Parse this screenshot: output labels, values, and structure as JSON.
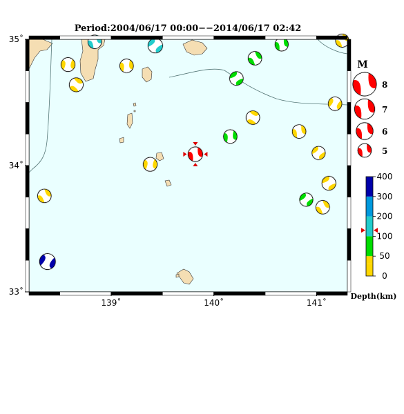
{
  "title": "Period:2004/06/17 00:00−−2014/06/17 02:42",
  "map": {
    "lon_range": [
      138.2,
      141.3
    ],
    "lat_range": [
      33.0,
      35.0
    ],
    "lon_ticks": [
      {
        "value": 139,
        "label": "139˚"
      },
      {
        "value": 140,
        "label": "140˚"
      },
      {
        "value": 141,
        "label": "141˚"
      }
    ],
    "lat_ticks": [
      {
        "value": 35,
        "label": "35˚"
      },
      {
        "value": 34,
        "label": "34˚"
      },
      {
        "value": 33,
        "label": "33˚"
      }
    ],
    "sea_color": "#eaffff",
    "land_color": "#f5deb3"
  },
  "events": [
    {
      "lon": 139.82,
      "lat": 34.09,
      "mag": 5.3,
      "color": "#ff0000",
      "rot": 20,
      "main": true
    },
    {
      "lon": 138.58,
      "lat": 34.8,
      "mag": 5.1,
      "color": "#ffd700",
      "rot": 40
    },
    {
      "lon": 138.66,
      "lat": 34.64,
      "mag": 5.1,
      "color": "#ffd700",
      "rot": -20
    },
    {
      "lon": 138.84,
      "lat": 34.98,
      "mag": 5.0,
      "color": "#22cccc",
      "rot": 10
    },
    {
      "lon": 139.15,
      "lat": 34.79,
      "mag": 5.0,
      "color": "#ffd700",
      "rot": 30
    },
    {
      "lon": 139.43,
      "lat": 34.95,
      "mag": 5.3,
      "color": "#22cccc",
      "rot": 80
    },
    {
      "lon": 140.4,
      "lat": 34.85,
      "mag": 5.0,
      "color": "#00dd00",
      "rot": 0
    },
    {
      "lon": 140.66,
      "lat": 34.96,
      "mag": 4.9,
      "color": "#00dd00",
      "rot": 20
    },
    {
      "lon": 141.25,
      "lat": 34.99,
      "mag": 4.9,
      "color": "#ffd700",
      "rot": 0
    },
    {
      "lon": 140.22,
      "lat": 34.69,
      "mag": 5.0,
      "color": "#00dd00",
      "rot": 90
    },
    {
      "lon": 141.18,
      "lat": 34.49,
      "mag": 5.0,
      "color": "#ffd700",
      "rot": 60
    },
    {
      "lon": 140.38,
      "lat": 34.38,
      "mag": 5.0,
      "color": "#ffd700",
      "rot": -30
    },
    {
      "lon": 140.83,
      "lat": 34.27,
      "mag": 5.0,
      "color": "#ffd700",
      "rot": 20
    },
    {
      "lon": 140.16,
      "lat": 34.23,
      "mag": 5.0,
      "color": "#00dd00",
      "rot": 30
    },
    {
      "lon": 141.02,
      "lat": 34.1,
      "mag": 4.9,
      "color": "#ffd700",
      "rot": 80
    },
    {
      "lon": 139.38,
      "lat": 34.01,
      "mag": 5.1,
      "color": "#ffd700",
      "rot": 40
    },
    {
      "lon": 141.12,
      "lat": 33.86,
      "mag": 5.1,
      "color": "#ffd700",
      "rot": 90
    },
    {
      "lon": 140.9,
      "lat": 33.73,
      "mag": 4.9,
      "color": "#00dd00",
      "rot": 80
    },
    {
      "lon": 141.06,
      "lat": 33.67,
      "mag": 5.0,
      "color": "#ffd700",
      "rot": 0
    },
    {
      "lon": 138.35,
      "lat": 33.76,
      "mag": 5.0,
      "color": "#ffd700",
      "rot": 0
    },
    {
      "lon": 138.38,
      "lat": 33.24,
      "mag": 5.7,
      "color": "#0000aa",
      "rot": 60
    }
  ],
  "mag_legend": {
    "header": "M",
    "items": [
      {
        "label": "8",
        "mag": 8
      },
      {
        "label": "7",
        "mag": 7
      },
      {
        "label": "6",
        "mag": 6
      },
      {
        "label": "5",
        "mag": 5
      }
    ]
  },
  "depth_legend": {
    "title": "Depth(km)",
    "segments": [
      {
        "from": 0,
        "to": 30,
        "color": "#ffd700"
      },
      {
        "from": 30,
        "to": 50,
        "color": "#ffd700"
      },
      {
        "from": 50,
        "to": 100,
        "color": "#00dd00"
      },
      {
        "from": 100,
        "to": 200,
        "color": "#22cccc"
      },
      {
        "from": 200,
        "to": 300,
        "color": "#0099dd"
      },
      {
        "from": 300,
        "to": 400,
        "color": "#0000aa"
      }
    ],
    "labels": [
      {
        "value": 0,
        "text": "0"
      },
      {
        "value": 50,
        "text": "50"
      },
      {
        "value": 100,
        "text": "100"
      },
      {
        "value": 200,
        "text": "200"
      },
      {
        "value": 300,
        "text": "300"
      },
      {
        "value": 400,
        "text": "400"
      }
    ],
    "marker_depth": 130,
    "marker_color": "#dd0000"
  }
}
